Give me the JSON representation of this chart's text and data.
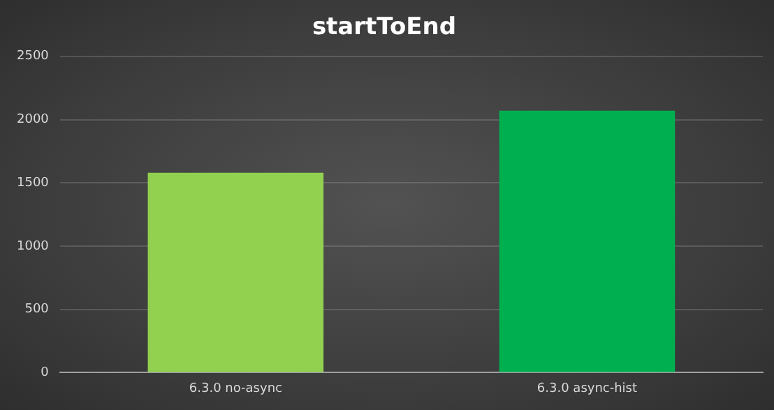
{
  "chart_data": {
    "type": "bar",
    "title": "startToEnd",
    "categories": [
      "6.3.0 no-async",
      "6.3.0 async-hist"
    ],
    "values": [
      1580,
      2070
    ],
    "colors": [
      "#92d050",
      "#00b050"
    ],
    "ylim": [
      0,
      2500
    ],
    "yticks": [
      0,
      500,
      1000,
      1500,
      2000,
      2500
    ],
    "grid": "y"
  }
}
